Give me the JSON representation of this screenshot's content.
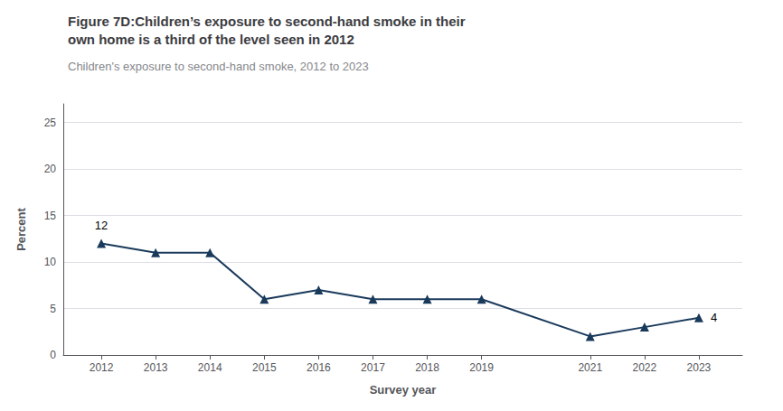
{
  "chart_data": {
    "type": "line",
    "title": "Figure 7D:Children’s exposure to second-hand smoke in their\nown home is a third of the level seen in 2012",
    "subtitle": "Children's exposure to second-hand smoke, 2012 to 2023",
    "xlabel": "Survey year",
    "ylabel": "Percent",
    "x": [
      2012,
      2013,
      2014,
      2015,
      2016,
      2017,
      2018,
      2019,
      2021,
      2022,
      2023
    ],
    "values": [
      12,
      11,
      11,
      6,
      7,
      6,
      6,
      6,
      2,
      3,
      4
    ],
    "color": "#1a3a5c",
    "marker": "triangle",
    "xlim": [
      2011.3,
      2023.8
    ],
    "xticks": [
      2012,
      2013,
      2014,
      2015,
      2016,
      2017,
      2018,
      2019,
      2021,
      2022,
      2023
    ],
    "ylim": [
      0,
      27
    ],
    "yticks": [
      0,
      5,
      10,
      15,
      20,
      25
    ],
    "grid": true,
    "annotations": [
      {
        "x": 2012,
        "y": 12,
        "text": "12"
      },
      {
        "x": 2023,
        "y": 4,
        "text": "4"
      }
    ]
  }
}
